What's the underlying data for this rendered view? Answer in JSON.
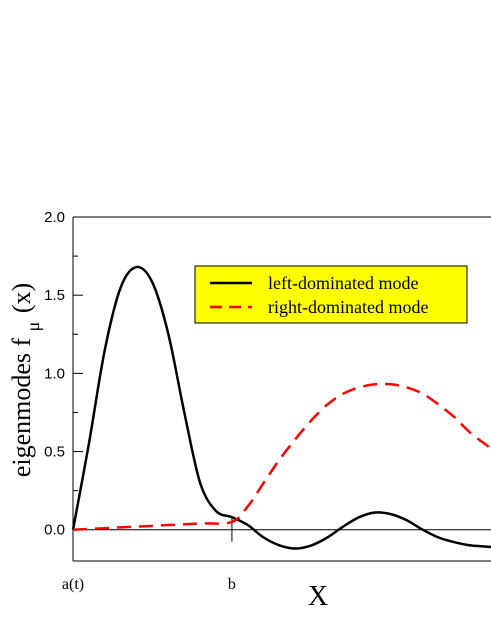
{
  "chart_data": {
    "type": "line",
    "title": "",
    "xlabel": "X",
    "ylabel": "eigenmodes f",
    "ylabel_sub": "μ",
    "ylabel_tail": "(x)",
    "ylim": [
      -0.2,
      2.0
    ],
    "yticks": [
      "0.0",
      "0.5",
      "1.0",
      "1.5",
      "2.0"
    ],
    "yticks_values": [
      0,
      0.5,
      1.0,
      1.5,
      2.0
    ],
    "x_markers": [
      {
        "label": "a(t)",
        "x": 0
      },
      {
        "label": "b",
        "x": 1
      }
    ],
    "xlim": [
      0,
      2.63
    ],
    "grid": false,
    "legend_position": "top-right",
    "legend_background": "#ffff00",
    "series": [
      {
        "name": "left-dominated mode",
        "color": "#000000",
        "style": "solid",
        "x": [
          0,
          0.1,
          0.2,
          0.3,
          0.4,
          0.5,
          0.6,
          0.7,
          0.8,
          0.9,
          1.0,
          1.1,
          1.2,
          1.3,
          1.4,
          1.5,
          1.6,
          1.7,
          1.8,
          1.9,
          2.0,
          2.1,
          2.2,
          2.3,
          2.4,
          2.5,
          2.63
        ],
        "values": [
          0.0,
          0.55,
          1.15,
          1.55,
          1.68,
          1.58,
          1.25,
          0.75,
          0.3,
          0.12,
          0.08,
          0.03,
          -0.05,
          -0.1,
          -0.12,
          -0.1,
          -0.05,
          0.02,
          0.08,
          0.11,
          0.1,
          0.06,
          0.0,
          -0.05,
          -0.08,
          -0.1,
          -0.11
        ]
      },
      {
        "name": "right-dominated mode",
        "color": "#ff0000",
        "style": "dashed",
        "x": [
          0,
          0.2,
          0.4,
          0.6,
          0.8,
          1.0,
          1.1,
          1.2,
          1.3,
          1.4,
          1.5,
          1.6,
          1.7,
          1.8,
          1.9,
          2.0,
          2.1,
          2.2,
          2.3,
          2.4,
          2.5,
          2.63
        ],
        "values": [
          0.0,
          0.01,
          0.02,
          0.03,
          0.04,
          0.05,
          0.15,
          0.3,
          0.45,
          0.58,
          0.7,
          0.8,
          0.87,
          0.91,
          0.93,
          0.93,
          0.91,
          0.87,
          0.8,
          0.72,
          0.62,
          0.52
        ]
      }
    ]
  }
}
